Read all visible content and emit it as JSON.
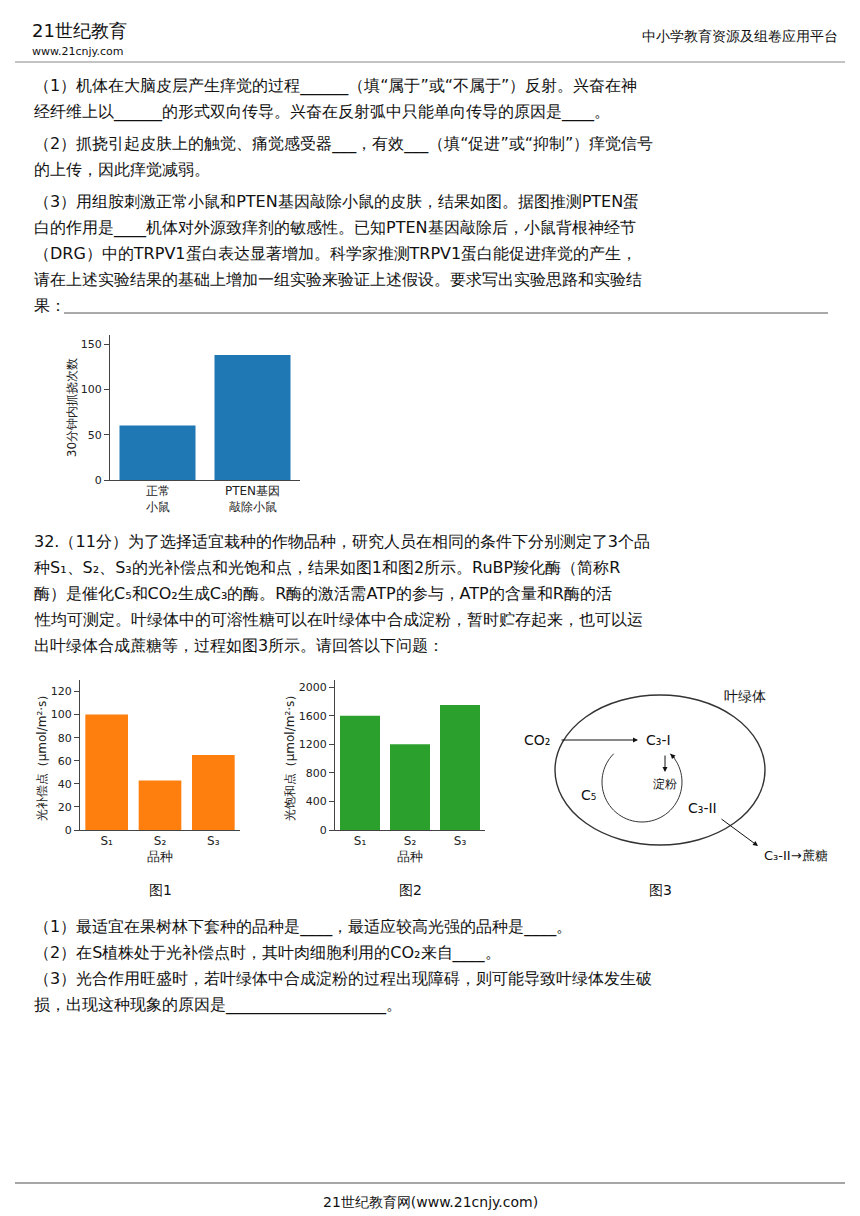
{
  "chart_data": [
    {
      "type": "bar",
      "categories": [
        "正常\n小鼠",
        "PTEN基因\n敲除小鼠"
      ],
      "values": [
        60,
        138
      ],
      "ylim": [
        0,
        160
      ],
      "yticks": [
        0,
        50,
        100,
        150
      ],
      "ylabel": "30分钟内抓挠次数",
      "grid": false,
      "annotations": [
        "21世纪教育",
        "www.21cnjy.com",
        "中小学教育资源及组卷应用平台",
        "（1）机体在大脑皮层产生痒觉的过程______（填“属于”或“不属于”）反射。兴奋在神",
        "经纤维上以______的形式双向传导。兴奋在反射弧中只能单向传导的原因是____。",
        "（2）抓挠引起皮肤上的触觉、痛觉感受器___，有效___（填“促进”或“抑制”）痒觉信号",
        "的上传，因此痒觉减弱。",
        "（3）用组胺刺激正常小鼠和PTEN基因敲除小鼠的皮肤，结果如图。据图推测PTEN蛋",
        "白的作用是____机体对外源致痒剂的敏感性。已知PTEN基因敲除后，小鼠背根神经节",
        "（DRG）中的TRPV1蛋白表达显著增加。科学家推测TRPV1蛋白能促进痒觉的产生，",
        "请在上述实验结果的基础上增加一组实验来验证上述假设。要求写出实验思路和实验结",
        "果："
      ]
    },
    {
      "type": "bar",
      "categories": [
        "S₁",
        "S₂",
        "S₃"
      ],
      "values": [
        100,
        43,
        65
      ],
      "ylim": [
        0,
        130
      ],
      "yticks": [
        0,
        20,
        40,
        60,
        80,
        100,
        120
      ],
      "ylabel": "光补偿点（μmol/m²·s）",
      "xlabel": "品种",
      "grid": false,
      "annotations": [
        "32.（11分）为了选择适宜栽种的作物品种，研究人员在相同的条件下分别测定了3个品",
        "种S₁、S₂、S₃的光补偿点和光饱和点，结果如图1和图2所示。RuBP羧化酶（简称R",
        "酶）是催化C₅和CO₂生成C₃的酶。R酶的激活需ATP的参与，ATP的含量和R酶的活",
        "性均可测定。叶绿体中的可溶性糖可以在叶绿体中合成淀粉，暂时贮存起来，也可以运",
        "出叶绿体合成蔗糖等，过程如图3所示。请回答以下问题：",
        "图1"
      ]
    },
    {
      "type": "bar",
      "categories": [
        "S₁",
        "S₂",
        "S₃"
      ],
      "values": [
        1600,
        1200,
        1750
      ],
      "ylim": [
        0,
        2100
      ],
      "yticks": [
        0,
        400,
        800,
        1200,
        1600,
        2000
      ],
      "ylabel": "光饱和点（μmol/m²·s）",
      "xlabel": "品种",
      "grid": false,
      "annotations": [
        "图2",
        "叶绿体",
        "CO₂",
        "C₃-I",
        "淀粉",
        "C₅",
        "C₃-II",
        "C₃-II→蔗糖",
        "图3",
        "（1）最适宜在果树林下套种的品种是____，最适应较高光强的品种是____。",
        "（2）在S植株处于光补偿点时，其叶肉细胞利用的CO₂来自____。",
        "（3）光合作用旺盛时，若叶绿体中合成淀粉的过程出现障碍，则可能导致叶绿体发生破",
        "损，出现这种现象的原因是____________________。",
        "21世纪教育网(www.21cnjy.com)"
      ]
    }
  ]
}
